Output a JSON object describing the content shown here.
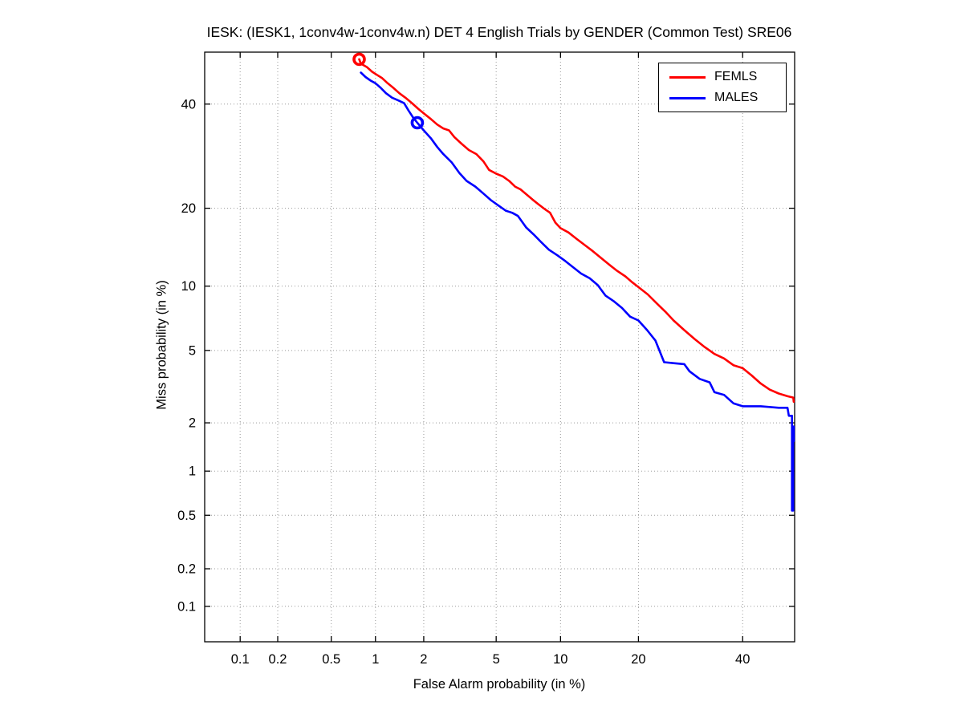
{
  "chart_data": {
    "type": "line",
    "subtype": "DET-curve",
    "title": "IESK: (IESK1, 1conv4w-1conv4w.n) DET 4 English Trials by GENDER (Common Test) SRE06",
    "xlabel": "False Alarm probability (in %)",
    "ylabel": "Miss probability (in %)",
    "x_scale": "probit",
    "y_scale": "probit",
    "xlim": [
      0.05,
      51.6
    ],
    "ylim": [
      0.05,
      51.6
    ],
    "xticks": [
      0.1,
      0.2,
      0.5,
      1,
      2,
      5,
      10,
      20,
      40
    ],
    "yticks": [
      0.1,
      0.2,
      0.5,
      1,
      2,
      5,
      10,
      20,
      40
    ],
    "grid": true,
    "legend_position": "top-right",
    "series": [
      {
        "name": "FEMLS",
        "color": "#ff0000",
        "marker": [
          0.78,
          50
        ],
        "points": [
          [
            0.78,
            50
          ],
          [
            0.8,
            49
          ],
          [
            0.88,
            48.2
          ],
          [
            0.95,
            47.2
          ],
          [
            1.02,
            46.5
          ],
          [
            1.1,
            45.8
          ],
          [
            1.2,
            44.6
          ],
          [
            1.3,
            43.6
          ],
          [
            1.42,
            42.4
          ],
          [
            1.55,
            41.4
          ],
          [
            1.7,
            40.2
          ],
          [
            1.85,
            39.0
          ],
          [
            2.0,
            38.0
          ],
          [
            2.2,
            36.8
          ],
          [
            2.4,
            35.6
          ],
          [
            2.6,
            34.8
          ],
          [
            2.8,
            34.4
          ],
          [
            3.0,
            33.0
          ],
          [
            3.3,
            31.6
          ],
          [
            3.6,
            30.4
          ],
          [
            3.95,
            29.6
          ],
          [
            4.3,
            28.2
          ],
          [
            4.6,
            26.6
          ],
          [
            5.0,
            25.9
          ],
          [
            5.4,
            25.4
          ],
          [
            5.8,
            24.6
          ],
          [
            6.2,
            23.6
          ],
          [
            6.6,
            23.1
          ],
          [
            7.0,
            22.3
          ],
          [
            7.5,
            21.4
          ],
          [
            8.0,
            20.6
          ],
          [
            8.5,
            19.9
          ],
          [
            9.0,
            19.3
          ],
          [
            9.5,
            17.8
          ],
          [
            10.0,
            17.0
          ],
          [
            10.8,
            16.4
          ],
          [
            11.7,
            15.5
          ],
          [
            12.6,
            14.7
          ],
          [
            13.6,
            13.9
          ],
          [
            14.6,
            13.1
          ],
          [
            15.7,
            12.3
          ],
          [
            16.8,
            11.6
          ],
          [
            18.0,
            11.0
          ],
          [
            19.0,
            10.4
          ],
          [
            20.0,
            9.9
          ],
          [
            21.5,
            9.2
          ],
          [
            23.0,
            8.4
          ],
          [
            24.5,
            7.7
          ],
          [
            26.0,
            7.0
          ],
          [
            28.0,
            6.3
          ],
          [
            30.0,
            5.7
          ],
          [
            32.0,
            5.2
          ],
          [
            34.0,
            4.8
          ],
          [
            36.0,
            4.55
          ],
          [
            38.0,
            4.2
          ],
          [
            40.0,
            4.05
          ],
          [
            42.0,
            3.7
          ],
          [
            44.0,
            3.35
          ],
          [
            46.0,
            3.1
          ],
          [
            48.0,
            2.95
          ],
          [
            50.0,
            2.85
          ],
          [
            51.3,
            2.8
          ],
          [
            51.4,
            2.65
          ]
        ]
      },
      {
        "name": "MALES",
        "color": "#0000ff",
        "marker": [
          1.83,
          36
        ],
        "points": [
          [
            0.8,
            47.0
          ],
          [
            0.86,
            46.0
          ],
          [
            0.93,
            45.2
          ],
          [
            1.0,
            44.6
          ],
          [
            1.08,
            43.6
          ],
          [
            1.17,
            42.4
          ],
          [
            1.28,
            41.4
          ],
          [
            1.4,
            40.8
          ],
          [
            1.52,
            40.2
          ],
          [
            1.62,
            38.6
          ],
          [
            1.72,
            37.2
          ],
          [
            1.83,
            36.0
          ],
          [
            2.0,
            34.4
          ],
          [
            2.2,
            32.8
          ],
          [
            2.4,
            31.0
          ],
          [
            2.6,
            29.6
          ],
          [
            2.9,
            28.0
          ],
          [
            3.2,
            26.0
          ],
          [
            3.5,
            24.6
          ],
          [
            3.9,
            23.6
          ],
          [
            4.3,
            22.4
          ],
          [
            4.7,
            21.3
          ],
          [
            5.2,
            20.3
          ],
          [
            5.6,
            19.6
          ],
          [
            6.0,
            19.3
          ],
          [
            6.4,
            18.8
          ],
          [
            7.0,
            17.1
          ],
          [
            7.6,
            16.1
          ],
          [
            8.2,
            15.1
          ],
          [
            8.9,
            14.1
          ],
          [
            9.7,
            13.4
          ],
          [
            10.5,
            12.7
          ],
          [
            11.3,
            12.0
          ],
          [
            12.2,
            11.3
          ],
          [
            13.2,
            10.8
          ],
          [
            14.2,
            10.1
          ],
          [
            15.2,
            9.1
          ],
          [
            16.3,
            8.6
          ],
          [
            17.5,
            8.0
          ],
          [
            18.7,
            7.3
          ],
          [
            20.0,
            7.0
          ],
          [
            21.4,
            6.3
          ],
          [
            22.8,
            5.6
          ],
          [
            24.3,
            4.35
          ],
          [
            26.0,
            4.3
          ],
          [
            28.0,
            4.25
          ],
          [
            29.0,
            3.9
          ],
          [
            31.0,
            3.55
          ],
          [
            33.0,
            3.4
          ],
          [
            34.0,
            3.0
          ],
          [
            36.0,
            2.9
          ],
          [
            38.0,
            2.6
          ],
          [
            40.0,
            2.5
          ],
          [
            44.0,
            2.5
          ],
          [
            48.0,
            2.45
          ],
          [
            50.0,
            2.45
          ],
          [
            50.3,
            2.2
          ],
          [
            51.0,
            2.2
          ],
          [
            51.0,
            0.54
          ],
          [
            51.25,
            0.54
          ],
          [
            51.25,
            1.9
          ],
          [
            51.4,
            1.9
          ],
          [
            51.4,
            1.55
          ]
        ]
      }
    ]
  }
}
